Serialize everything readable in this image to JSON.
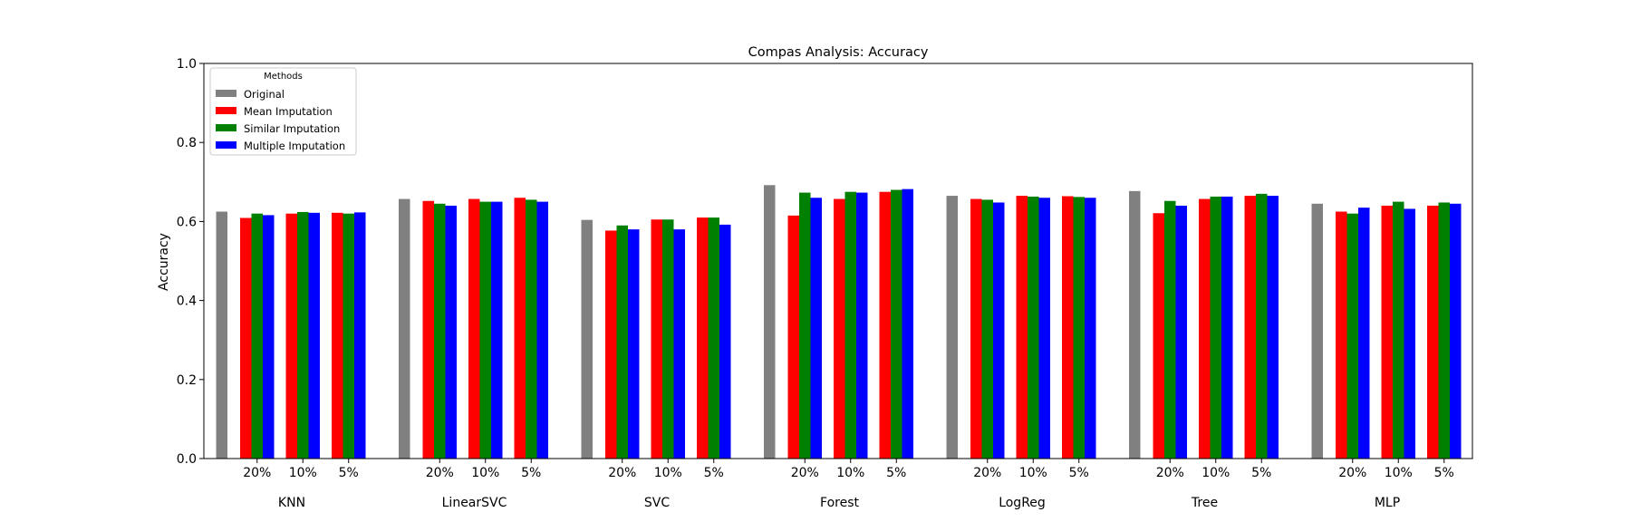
{
  "chart_data": {
    "type": "bar",
    "title": "Compas Analysis: Accuracy",
    "xlabel": "",
    "ylabel": "Accuracy",
    "ylim": [
      0,
      1.0
    ],
    "yticks": [
      "0.0",
      "0.2",
      "0.4",
      "0.6",
      "0.8",
      "1.0"
    ],
    "grid": false,
    "legend": {
      "title": "Methods",
      "placement": "top-left",
      "entries": [
        "Original",
        "Mean Imputation",
        "Similar Imputation",
        "Multiple Imputation"
      ]
    },
    "models": [
      "KNN",
      "LinearSVC",
      "SVC",
      "Forest",
      "LogReg",
      "Tree",
      "MLP"
    ],
    "missing_rates": [
      "20%",
      "10%",
      "5%"
    ],
    "colors": {
      "Original": "#808080",
      "Mean Imputation": "#ff0000",
      "Similar Imputation": "#008000",
      "Multiple Imputation": "#0000ff"
    },
    "original": [
      0.625,
      0.657,
      0.604,
      0.692,
      0.665,
      0.677,
      0.645
    ],
    "series": [
      {
        "name": "Mean Imputation",
        "values": [
          [
            0.609,
            0.62,
            0.622
          ],
          [
            0.652,
            0.657,
            0.66
          ],
          [
            0.577,
            0.605,
            0.61
          ],
          [
            0.615,
            0.657,
            0.675
          ],
          [
            0.657,
            0.665,
            0.664
          ],
          [
            0.621,
            0.657,
            0.665
          ],
          [
            0.625,
            0.64,
            0.64
          ]
        ]
      },
      {
        "name": "Similar Imputation",
        "values": [
          [
            0.62,
            0.624,
            0.62
          ],
          [
            0.645,
            0.65,
            0.655
          ],
          [
            0.59,
            0.605,
            0.61
          ],
          [
            0.673,
            0.675,
            0.68
          ],
          [
            0.655,
            0.663,
            0.662
          ],
          [
            0.652,
            0.663,
            0.67
          ],
          [
            0.62,
            0.65,
            0.648
          ]
        ]
      },
      {
        "name": "Multiple Imputation",
        "values": [
          [
            0.616,
            0.622,
            0.623
          ],
          [
            0.64,
            0.65,
            0.65
          ],
          [
            0.58,
            0.58,
            0.592
          ],
          [
            0.66,
            0.673,
            0.682
          ],
          [
            0.648,
            0.66,
            0.66
          ],
          [
            0.64,
            0.663,
            0.665
          ],
          [
            0.635,
            0.632,
            0.645
          ]
        ]
      }
    ]
  }
}
